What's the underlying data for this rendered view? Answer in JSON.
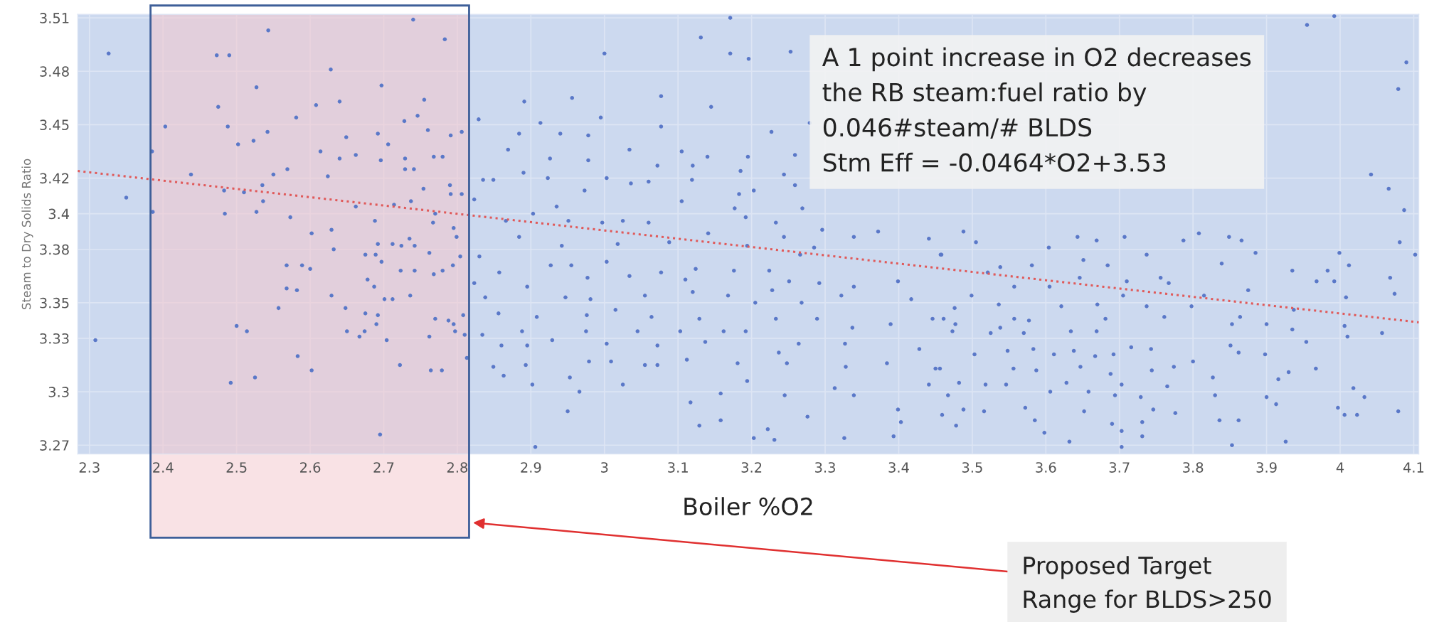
{
  "chart_data": {
    "type": "scatter",
    "xlabel": "Boiler %O2",
    "ylabel": "Steam to Dry Solids Ratio",
    "xlim": [
      2.284,
      4.107
    ],
    "ylim": [
      3.265,
      3.512
    ],
    "xticks": [
      2.3,
      2.4,
      2.5,
      2.6,
      2.7,
      2.8,
      2.9,
      3,
      3.1,
      3.2,
      3.3,
      3.4,
      3.5,
      3.6,
      3.7,
      3.8,
      3.9,
      4,
      4.1
    ],
    "yticks": [
      3.27,
      3.3,
      3.33,
      3.35,
      3.38,
      3.4,
      3.42,
      3.45,
      3.48,
      3.51
    ],
    "grid": true,
    "bands": [
      {
        "axis": "x",
        "from": 2.383,
        "to": 2.816,
        "color": "#f4c6cc"
      }
    ],
    "annotations": [
      "A 1 point increase in O2 decreases\nthe RB steam:fuel ratio by\n0.046#steam/# BLDS\nStm Eff = -0.0464*O2+3.53",
      "Proposed Target\nRange for BLDS>250"
    ],
    "series": [
      {
        "type": "scatter",
        "color": "#5a78c8",
        "marker": "circle",
        "x": [
          2.326,
          2.308,
          2.35,
          2.403,
          2.385,
          2.386,
          2.438,
          2.473,
          2.49,
          2.475,
          2.488,
          2.502,
          2.484,
          2.483,
          2.51,
          2.527,
          2.543,
          2.542,
          2.523,
          2.535,
          2.536,
          2.527,
          2.5,
          2.514,
          2.492,
          2.525,
          2.55,
          2.569,
          2.581,
          2.573,
          2.568,
          2.589,
          2.6,
          2.568,
          2.582,
          2.557,
          2.583,
          2.602,
          2.602,
          2.608,
          2.614,
          2.624,
          2.628,
          2.629,
          2.632,
          2.629,
          2.64,
          2.64,
          2.649,
          2.662,
          2.662,
          2.648,
          2.65,
          2.667,
          2.675,
          2.678,
          2.687,
          2.675,
          2.674,
          2.688,
          2.692,
          2.697,
          2.696,
          2.706,
          2.692,
          2.689,
          2.697,
          2.701,
          2.692,
          2.69,
          2.704,
          2.695,
          2.712,
          2.712,
          2.714,
          2.723,
          2.722,
          2.724,
          2.728,
          2.729,
          2.729,
          2.741,
          2.74,
          2.735,
          2.742,
          2.742,
          2.736,
          2.737,
          2.746,
          2.755,
          2.754,
          2.76,
          2.768,
          2.78,
          2.762,
          2.767,
          2.77,
          2.768,
          2.78,
          2.77,
          2.762,
          2.764,
          2.779,
          2.783,
          2.791,
          2.791,
          2.79,
          2.795,
          2.794,
          2.788,
          2.795,
          2.797,
          2.799,
          2.806,
          2.806,
          2.804,
          2.808,
          2.81,
          3.171,
          3.131,
          3.0,
          3.171,
          3.196,
          3.253,
          2.891,
          2.956,
          3.077,
          3.145,
          2.829,
          2.995,
          3.279,
          3.077,
          2.884,
          2.913,
          2.94,
          2.978,
          3.227,
          2.869,
          3.034,
          3.105,
          2.926,
          2.978,
          3.14,
          3.195,
          3.259,
          3.072,
          3.12,
          2.835,
          2.849,
          2.89,
          2.923,
          3.003,
          3.036,
          3.06,
          3.119,
          3.185,
          3.244,
          2.973,
          3.259,
          3.183,
          3.203,
          2.823,
          3.105,
          2.935,
          2.903,
          3.269,
          2.866,
          2.951,
          3.025,
          3.06,
          3.177,
          3.192,
          3.233,
          2.884,
          2.997,
          3.141,
          3.244,
          3.296,
          3.339,
          3.372,
          3.441,
          3.458,
          2.83,
          2.942,
          3.018,
          3.088,
          3.194,
          3.285,
          3.266,
          2.857,
          2.927,
          2.955,
          3.003,
          3.077,
          3.124,
          3.176,
          3.224,
          2.823,
          2.895,
          2.977,
          3.034,
          3.11,
          3.251,
          3.292,
          3.339,
          3.399,
          2.838,
          2.947,
          2.981,
          3.055,
          3.12,
          3.168,
          3.228,
          3.268,
          3.322,
          3.417,
          2.856,
          2.908,
          2.976,
          3.015,
          3.064,
          3.129,
          3.205,
          3.233,
          3.289,
          3.337,
          3.389,
          3.446,
          2.834,
          2.888,
          2.929,
          2.975,
          3.045,
          3.103,
          3.162,
          3.192,
          3.264,
          3.327,
          3.428,
          2.86,
          2.895,
          3.003,
          3.072,
          3.137,
          3.237,
          3.384,
          2.813,
          2.849,
          2.893,
          2.979,
          3.009,
          3.055,
          3.072,
          3.112,
          3.181,
          3.248,
          3.328,
          3.45,
          2.863,
          2.953,
          3.025,
          3.194,
          3.313,
          2.902,
          2.966,
          3.158,
          3.245,
          3.339,
          3.441,
          2.95,
          3.117,
          3.276,
          3.399,
          3.459,
          3.129,
          3.158,
          3.403,
          3.222,
          3.203,
          3.231,
          3.326,
          3.393,
          2.906,
          3.992,
          3.955,
          4.09,
          4.079,
          4.042,
          4.066,
          4.087,
          4.081,
          4.102,
          3.999,
          3.488,
          3.505,
          3.643,
          3.669,
          3.707,
          3.604,
          3.808,
          3.849,
          3.866,
          3.787,
          3.737,
          3.457,
          3.885,
          3.538,
          3.581,
          3.651,
          3.684,
          3.839,
          3.935,
          3.983,
          4.012,
          3.521,
          3.71,
          3.756,
          3.767,
          4.068,
          3.499,
          3.557,
          3.605,
          3.646,
          3.875,
          3.968,
          3.992,
          3.705,
          3.815,
          4.008,
          4.074,
          3.476,
          3.536,
          3.621,
          3.67,
          3.798,
          3.937,
          3.737,
          3.461,
          3.557,
          3.681,
          3.761,
          3.864,
          3.477,
          3.538,
          3.577,
          3.853,
          3.9,
          4.006,
          4.057,
          3.473,
          3.525,
          3.57,
          3.634,
          3.669,
          3.935,
          3.954,
          4.01,
          3.548,
          3.583,
          3.611,
          3.638,
          3.667,
          3.692,
          3.716,
          3.743,
          3.851,
          3.862,
          3.898,
          3.456,
          3.503,
          3.556,
          3.587,
          3.647,
          3.688,
          3.744,
          3.774,
          3.8,
          3.967,
          3.93,
          3.482,
          3.518,
          3.546,
          3.628,
          3.658,
          3.703,
          3.765,
          3.827,
          3.916,
          4.018,
          3.467,
          3.606,
          3.694,
          3.729,
          3.83,
          3.9,
          4.033,
          3.488,
          3.516,
          3.572,
          3.652,
          3.746,
          3.776,
          3.913,
          3.997,
          4.006,
          4.023,
          4.079,
          3.585,
          3.69,
          3.731,
          3.836,
          3.862,
          3.478,
          3.598,
          3.703,
          3.731,
          3.926,
          3.632,
          3.853,
          3.703
        ],
        "values": [
          3.49,
          3.329,
          3.409,
          3.449,
          3.435,
          3.401,
          3.422,
          3.489,
          3.489,
          3.46,
          3.449,
          3.439,
          3.4,
          3.413,
          3.412,
          3.471,
          3.503,
          3.446,
          3.441,
          3.416,
          3.407,
          3.401,
          3.337,
          3.334,
          3.305,
          3.308,
          3.422,
          3.425,
          3.454,
          3.398,
          3.371,
          3.371,
          3.369,
          3.358,
          3.357,
          3.347,
          3.32,
          3.312,
          3.389,
          3.461,
          3.435,
          3.421,
          3.481,
          3.391,
          3.38,
          3.354,
          3.463,
          3.431,
          3.443,
          3.433,
          3.404,
          3.347,
          3.334,
          3.331,
          3.377,
          3.363,
          3.359,
          3.344,
          3.334,
          3.396,
          3.445,
          3.472,
          3.43,
          3.439,
          3.383,
          3.377,
          3.373,
          3.352,
          3.343,
          3.338,
          3.329,
          3.276,
          3.383,
          3.352,
          3.405,
          3.368,
          3.315,
          3.382,
          3.452,
          3.431,
          3.425,
          3.425,
          3.509,
          3.386,
          3.382,
          3.368,
          3.354,
          3.407,
          3.455,
          3.464,
          3.414,
          3.447,
          3.432,
          3.432,
          3.378,
          3.395,
          3.4,
          3.366,
          3.368,
          3.341,
          3.331,
          3.312,
          3.312,
          3.498,
          3.444,
          3.411,
          3.416,
          3.392,
          3.371,
          3.34,
          3.338,
          3.334,
          3.387,
          3.446,
          3.411,
          3.376,
          3.343,
          3.332,
          3.51,
          3.499,
          3.49,
          3.49,
          3.487,
          3.491,
          3.463,
          3.465,
          3.466,
          3.46,
          3.453,
          3.454,
          3.451,
          3.449,
          3.445,
          3.451,
          3.445,
          3.444,
          3.446,
          3.436,
          3.436,
          3.435,
          3.431,
          3.43,
          3.432,
          3.432,
          3.433,
          3.427,
          3.427,
          3.419,
          3.419,
          3.423,
          3.42,
          3.42,
          3.417,
          3.418,
          3.419,
          3.424,
          3.422,
          3.413,
          3.416,
          3.411,
          3.413,
          3.408,
          3.407,
          3.404,
          3.4,
          3.403,
          3.396,
          3.396,
          3.396,
          3.395,
          3.403,
          3.398,
          3.395,
          3.387,
          3.395,
          3.389,
          3.387,
          3.391,
          3.387,
          3.39,
          3.386,
          3.377,
          3.376,
          3.382,
          3.383,
          3.384,
          3.382,
          3.381,
          3.377,
          3.367,
          3.371,
          3.371,
          3.373,
          3.367,
          3.369,
          3.368,
          3.368,
          3.361,
          3.359,
          3.364,
          3.365,
          3.363,
          3.362,
          3.361,
          3.359,
          3.362,
          3.353,
          3.353,
          3.352,
          3.354,
          3.356,
          3.354,
          3.357,
          3.35,
          3.354,
          3.352,
          3.344,
          3.342,
          3.343,
          3.346,
          3.342,
          3.341,
          3.35,
          3.341,
          3.341,
          3.336,
          3.338,
          3.341,
          3.332,
          3.334,
          3.329,
          3.334,
          3.334,
          3.334,
          3.334,
          3.334,
          3.327,
          3.327,
          3.324,
          3.326,
          3.326,
          3.327,
          3.326,
          3.328,
          3.322,
          3.316,
          3.319,
          3.314,
          3.315,
          3.317,
          3.317,
          3.315,
          3.315,
          3.318,
          3.316,
          3.316,
          3.314,
          3.313,
          3.309,
          3.308,
          3.304,
          3.306,
          3.302,
          3.304,
          3.3,
          3.299,
          3.298,
          3.298,
          3.304,
          3.289,
          3.294,
          3.286,
          3.29,
          3.287,
          3.281,
          3.284,
          3.283,
          3.279,
          3.274,
          3.273,
          3.274,
          3.275,
          3.269,
          3.511,
          3.506,
          3.485,
          3.47,
          3.422,
          3.414,
          3.402,
          3.384,
          3.377,
          3.378,
          3.39,
          3.384,
          3.387,
          3.385,
          3.387,
          3.381,
          3.389,
          3.387,
          3.385,
          3.385,
          3.377,
          3.377,
          3.378,
          3.37,
          3.371,
          3.374,
          3.371,
          3.372,
          3.368,
          3.368,
          3.371,
          3.367,
          3.362,
          3.364,
          3.361,
          3.364,
          3.354,
          3.359,
          3.359,
          3.364,
          3.357,
          3.362,
          3.362,
          3.354,
          3.354,
          3.353,
          3.355,
          3.347,
          3.349,
          3.348,
          3.349,
          3.348,
          3.346,
          3.348,
          3.341,
          3.341,
          3.341,
          3.342,
          3.342,
          3.338,
          3.336,
          3.34,
          3.338,
          3.338,
          3.337,
          3.333,
          3.334,
          3.333,
          3.333,
          3.334,
          3.334,
          3.335,
          3.328,
          3.331,
          3.323,
          3.324,
          3.321,
          3.323,
          3.32,
          3.321,
          3.325,
          3.324,
          3.326,
          3.322,
          3.321,
          3.313,
          3.321,
          3.313,
          3.312,
          3.314,
          3.31,
          3.312,
          3.314,
          3.317,
          3.313,
          3.311,
          3.305,
          3.304,
          3.304,
          3.305,
          3.3,
          3.304,
          3.303,
          3.308,
          3.307,
          3.302,
          3.298,
          3.3,
          3.298,
          3.297,
          3.298,
          3.297,
          3.297,
          3.29,
          3.289,
          3.291,
          3.289,
          3.29,
          3.288,
          3.293,
          3.291,
          3.287,
          3.287,
          3.289,
          3.284,
          3.282,
          3.283,
          3.284,
          3.284,
          3.281,
          3.277,
          3.278,
          3.275,
          3.272,
          3.272,
          3.27,
          3.269
        ]
      },
      {
        "type": "line",
        "color": "#e05a5a",
        "line_style": "dotted",
        "x": [
          2.284,
          4.107
        ],
        "values": [
          3.424,
          3.339
        ]
      }
    ]
  }
}
